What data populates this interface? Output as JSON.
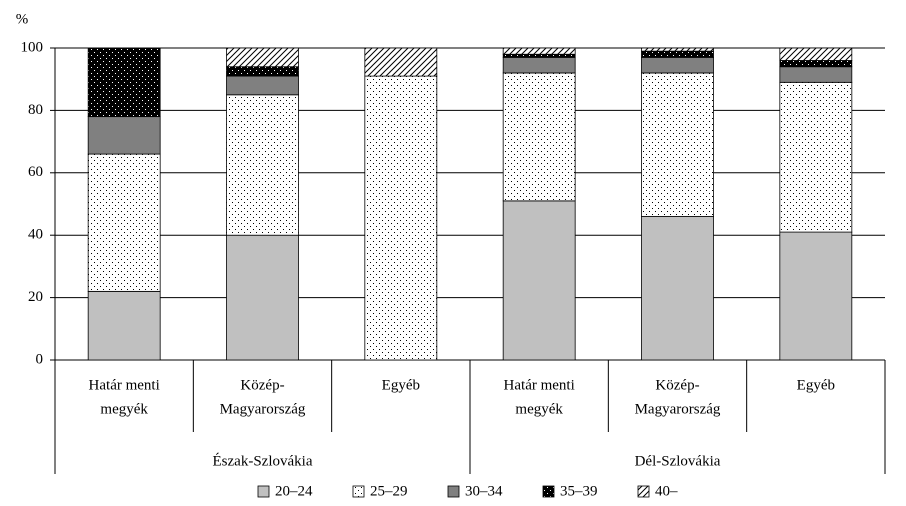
{
  "chart_data": {
    "type": "stacked-bar",
    "y_label": "%",
    "categories": [
      [
        "Határ menti",
        "megyék"
      ],
      [
        "Közép-",
        "Magyarország"
      ],
      [
        "Egyéb"
      ],
      [
        "Határ menti",
        "megyék"
      ],
      [
        "Közép-",
        "Magyarország"
      ],
      [
        "Egyéb"
      ]
    ],
    "groups": [
      "Észak-Szlovákia",
      "Dél-Szlovákia"
    ],
    "series": [
      {
        "name": "20–24",
        "color": "#c0c0c0",
        "pattern": "solid",
        "values": [
          22,
          40,
          0,
          51,
          46,
          41
        ]
      },
      {
        "name": "25–29",
        "color": "#ffffff",
        "pattern": "dots",
        "values": [
          44,
          45,
          91,
          41,
          46,
          48
        ]
      },
      {
        "name": "30–34",
        "color": "#808080",
        "pattern": "solid",
        "values": [
          12,
          6,
          0,
          5,
          5,
          5
        ]
      },
      {
        "name": "35–39",
        "color": "#000000",
        "pattern": "dots",
        "values": [
          22,
          3,
          0,
          1,
          2,
          2
        ]
      },
      {
        "name": "40–",
        "color": "#ffffff",
        "pattern": "hatch",
        "values": [
          0,
          6,
          9,
          2,
          1,
          4
        ]
      }
    ],
    "ylim": [
      0,
      100
    ],
    "yticks": [
      0,
      20,
      40,
      60,
      80,
      100
    ],
    "grid": true,
    "legend": "bottom"
  }
}
